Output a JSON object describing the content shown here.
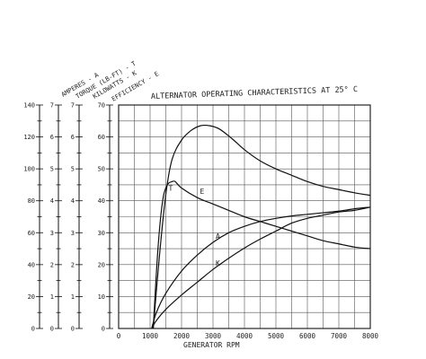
{
  "chart_data": {
    "type": "line",
    "title": "ALTERNATOR OPERATING CHARACTERISTICS AT 25° C",
    "xlabel": "GENERATOR RPM",
    "ylabels": [
      "AMPERES - A",
      "TORQUE (LB-FT) - T",
      "KILOWATTS - K",
      "EFFICIENCY - E"
    ],
    "x_ticks": [
      "0",
      "1000",
      "2000",
      "3000",
      "4000",
      "5000",
      "6000",
      "7000",
      "8000"
    ],
    "xlim": [
      0,
      8000
    ],
    "grid": true,
    "axes": [
      {
        "id": "amperes",
        "ticks": [
          "0",
          "20",
          "40",
          "60",
          "80",
          "100",
          "120",
          "140"
        ],
        "ylim": [
          0,
          140
        ]
      },
      {
        "id": "torque",
        "ticks": [
          "0",
          "1",
          "2",
          "3",
          "4",
          "5",
          "6",
          "7"
        ],
        "ylim": [
          0,
          7
        ]
      },
      {
        "id": "kilowatts",
        "ticks": [
          "0",
          "1",
          "2",
          "3",
          "4",
          "5",
          "6",
          "7"
        ],
        "ylim": [
          0,
          7
        ]
      },
      {
        "id": "efficiency",
        "ticks": [
          "0",
          "10",
          "20",
          "30",
          "40",
          "50",
          "60",
          "70"
        ],
        "ylim": [
          0,
          70
        ]
      }
    ],
    "series": [
      {
        "name": "T",
        "axis": "torque",
        "x": [
          1100,
          1300,
          1500,
          1700,
          2000,
          2300,
          2600,
          2900,
          3200,
          3600,
          4000,
          4500,
          5000,
          5500,
          6000,
          6500,
          7000,
          7500,
          8000
        ],
        "values": [
          0,
          2.3,
          4.2,
          5.3,
          5.9,
          6.2,
          6.35,
          6.35,
          6.25,
          5.95,
          5.6,
          5.25,
          5.0,
          4.8,
          4.6,
          4.45,
          4.35,
          4.25,
          4.17
        ]
      },
      {
        "name": "E",
        "axis": "efficiency",
        "x": [
          1100,
          1250,
          1400,
          1550,
          1700,
          1800,
          2000,
          2500,
          3000,
          3500,
          4000,
          4500,
          5000,
          5500,
          6000,
          6500,
          7000,
          7500,
          8000
        ],
        "values": [
          0,
          25,
          40,
          45,
          46,
          46,
          44,
          41,
          39,
          37,
          35,
          33.5,
          32,
          30.5,
          29,
          27.5,
          26.5,
          25.5,
          25
        ]
      },
      {
        "name": "A",
        "axis": "amperes",
        "x": [
          1050,
          1200,
          1500,
          2000,
          2500,
          3000,
          3500,
          4000,
          4500,
          5000,
          5500,
          6000,
          6500,
          7000,
          7500,
          8000
        ],
        "values": [
          0,
          10,
          22,
          36,
          46,
          54,
          60,
          64,
          67,
          69,
          70.5,
          71.5,
          72.5,
          73.5,
          75,
          76
        ]
      },
      {
        "name": "K",
        "axis": "kilowatts",
        "x": [
          1050,
          1200,
          1500,
          2000,
          2500,
          3000,
          3500,
          4000,
          4500,
          5000,
          5500,
          6000,
          6500,
          7000,
          7500,
          8000
        ],
        "values": [
          0,
          0.25,
          0.6,
          1.05,
          1.45,
          1.85,
          2.2,
          2.52,
          2.8,
          3.05,
          3.3,
          3.45,
          3.55,
          3.65,
          3.7,
          3.8
        ]
      }
    ]
  }
}
